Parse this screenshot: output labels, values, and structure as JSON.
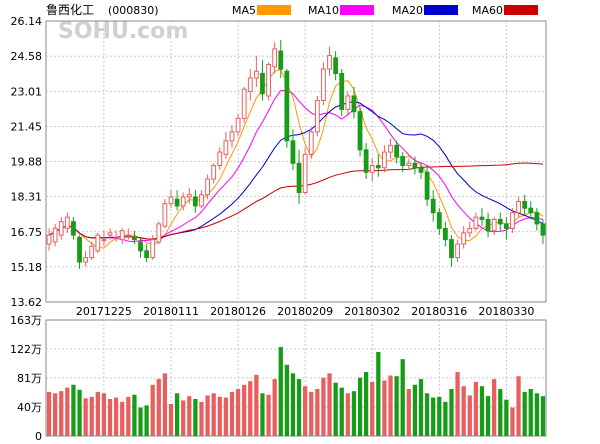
{
  "chart_data": {
    "type": "candlestick",
    "title": "鲁西化工",
    "code": "(000830)",
    "watermark": "SOHU.com",
    "legend": [
      {
        "name": "MA5",
        "color": "#ff9900"
      },
      {
        "name": "MA10",
        "color": "#ff00ff"
      },
      {
        "name": "MA20",
        "color": "#0000cc"
      },
      {
        "name": "MA60",
        "color": "#cc0000"
      }
    ],
    "colors": {
      "up": "#e85f5f",
      "down": "#169c16",
      "up_vol": "#e85f5f",
      "down_vol": "#169c16",
      "grid": "#bbbbbb",
      "frame": "#888888"
    },
    "price_axis": {
      "ticks": [
        "26.14",
        "24.58",
        "23.01",
        "21.45",
        "19.88",
        "18.31",
        "16.75",
        "15.18",
        "13.62"
      ],
      "ylim": [
        13.62,
        26.14
      ]
    },
    "x_ticks": [
      {
        "index": 9,
        "label": "20171225"
      },
      {
        "index": 20,
        "label": "20180111"
      },
      {
        "index": 31,
        "label": "20180126"
      },
      {
        "index": 42,
        "label": "20180209"
      },
      {
        "index": 53,
        "label": "20180302"
      },
      {
        "index": 64,
        "label": "20180316"
      },
      {
        "index": 75,
        "label": "20180330"
      }
    ],
    "volume_axis": {
      "ticks": [
        "163万",
        "122万",
        "81万",
        "40万",
        "0"
      ],
      "ylim": [
        0,
        163
      ],
      "unit": "万"
    },
    "candles": [
      [
        16.2,
        16.9,
        16.6,
        15.9
      ],
      [
        16.3,
        17.1,
        16.9,
        16.1
      ],
      [
        16.6,
        17.4,
        17.2,
        16.4
      ],
      [
        16.9,
        17.6,
        17.4,
        16.7
      ],
      [
        17.2,
        17.4,
        16.6,
        16.4
      ],
      [
        16.5,
        16.6,
        15.4,
        15.1
      ],
      [
        15.4,
        15.9,
        15.6,
        15.2
      ],
      [
        15.6,
        16.3,
        16.1,
        15.5
      ],
      [
        15.9,
        16.7,
        16.6,
        15.8
      ],
      [
        16.4,
        16.8,
        16.4,
        16.1
      ],
      [
        16.6,
        16.9,
        16.7,
        16.4
      ],
      [
        16.5,
        16.8,
        16.5,
        16.3
      ],
      [
        16.4,
        16.9,
        16.8,
        16.2
      ],
      [
        16.6,
        16.9,
        16.6,
        16.4
      ],
      [
        16.5,
        16.8,
        16.4,
        16.2
      ],
      [
        16.3,
        16.5,
        15.9,
        15.6
      ],
      [
        15.9,
        16.2,
        15.6,
        15.4
      ],
      [
        15.6,
        16.6,
        16.4,
        15.5
      ],
      [
        16.3,
        17.2,
        17.1,
        16.2
      ],
      [
        17.0,
        18.2,
        18.0,
        16.9
      ],
      [
        18.0,
        18.6,
        18.3,
        17.8
      ],
      [
        18.2,
        18.6,
        17.9,
        17.7
      ],
      [
        17.9,
        18.5,
        18.3,
        17.7
      ],
      [
        18.3,
        18.7,
        18.4,
        18.0
      ],
      [
        18.3,
        18.6,
        17.9,
        17.6
      ],
      [
        17.9,
        18.6,
        18.4,
        17.8
      ],
      [
        18.4,
        19.3,
        19.1,
        18.2
      ],
      [
        19.1,
        19.8,
        19.7,
        18.9
      ],
      [
        19.7,
        20.5,
        20.3,
        19.5
      ],
      [
        20.2,
        21.2,
        20.8,
        20.0
      ],
      [
        20.8,
        21.5,
        21.2,
        20.5
      ],
      [
        21.2,
        22.0,
        21.8,
        21.0
      ],
      [
        21.8,
        23.2,
        23.1,
        21.6
      ],
      [
        23.0,
        24.0,
        23.6,
        22.6
      ],
      [
        23.6,
        24.6,
        23.9,
        23.2
      ],
      [
        23.8,
        24.4,
        22.9,
        22.6
      ],
      [
        22.8,
        24.3,
        24.2,
        22.6
      ],
      [
        24.1,
        25.2,
        24.9,
        23.8
      ],
      [
        24.8,
        25.3,
        24.0,
        23.6
      ],
      [
        23.9,
        24.0,
        20.8,
        20.5
      ],
      [
        20.8,
        21.3,
        19.8,
        19.5
      ],
      [
        19.8,
        20.4,
        18.5,
        18.0
      ],
      [
        18.5,
        20.5,
        20.2,
        18.4
      ],
      [
        20.2,
        21.4,
        21.2,
        20.0
      ],
      [
        21.2,
        22.8,
        22.6,
        21.0
      ],
      [
        22.6,
        24.3,
        24.0,
        22.4
      ],
      [
        24.0,
        25.0,
        24.6,
        23.7
      ],
      [
        24.5,
        24.8,
        23.8,
        23.5
      ],
      [
        23.8,
        24.0,
        22.2,
        21.9
      ],
      [
        22.2,
        23.0,
        22.8,
        21.9
      ],
      [
        22.8,
        23.2,
        22.1,
        21.8
      ],
      [
        22.1,
        22.3,
        20.4,
        20.1
      ],
      [
        20.4,
        20.7,
        19.4,
        19.1
      ],
      [
        19.4,
        20.0,
        19.7,
        19.0
      ],
      [
        19.7,
        20.2,
        19.6,
        19.2
      ],
      [
        19.6,
        20.6,
        20.3,
        19.4
      ],
      [
        20.3,
        20.9,
        20.6,
        20.0
      ],
      [
        20.6,
        20.8,
        20.1,
        19.8
      ],
      [
        20.1,
        20.3,
        19.7,
        19.4
      ],
      [
        19.7,
        20.0,
        19.8,
        19.5
      ],
      [
        19.8,
        20.1,
        19.6,
        19.3
      ],
      [
        19.6,
        19.8,
        19.4,
        19.1
      ],
      [
        19.4,
        19.7,
        18.2,
        17.9
      ],
      [
        18.2,
        18.6,
        17.6,
        17.2
      ],
      [
        17.6,
        17.8,
        16.9,
        16.6
      ],
      [
        16.9,
        17.2,
        16.4,
        16.1
      ],
      [
        16.4,
        16.6,
        15.6,
        15.2
      ],
      [
        15.6,
        16.4,
        16.2,
        15.4
      ],
      [
        16.2,
        17.0,
        16.7,
        16.0
      ],
      [
        16.7,
        17.2,
        16.9,
        16.5
      ],
      [
        16.9,
        17.6,
        17.4,
        16.8
      ],
      [
        17.4,
        17.8,
        17.3,
        17.0
      ],
      [
        17.3,
        17.6,
        16.8,
        16.5
      ],
      [
        16.8,
        17.4,
        17.3,
        16.6
      ],
      [
        17.3,
        17.6,
        17.1,
        16.8
      ],
      [
        17.1,
        17.4,
        16.9,
        16.4
      ],
      [
        16.9,
        17.8,
        17.6,
        16.7
      ],
      [
        17.6,
        18.3,
        18.1,
        17.4
      ],
      [
        18.1,
        18.4,
        17.8,
        17.5
      ],
      [
        17.8,
        18.1,
        17.6,
        17.3
      ],
      [
        17.6,
        17.8,
        17.1,
        16.8
      ],
      [
        17.1,
        17.3,
        16.6,
        16.2
      ]
    ],
    "volume": [
      62,
      60,
      63,
      68,
      72,
      65,
      53,
      55,
      62,
      60,
      52,
      54,
      48,
      55,
      58,
      40,
      43,
      72,
      80,
      88,
      45,
      60,
      50,
      56,
      52,
      48,
      57,
      60,
      55,
      54,
      62,
      66,
      72,
      77,
      86,
      60,
      58,
      80,
      125,
      100,
      88,
      80,
      70,
      62,
      66,
      82,
      88,
      75,
      68,
      60,
      63,
      82,
      90,
      76,
      118,
      78,
      85,
      84,
      108,
      66,
      72,
      80,
      60,
      54,
      55,
      48,
      66,
      90,
      70,
      57,
      76,
      70,
      56,
      80,
      66,
      51,
      40,
      84,
      62,
      66,
      60,
      56
    ]
  }
}
